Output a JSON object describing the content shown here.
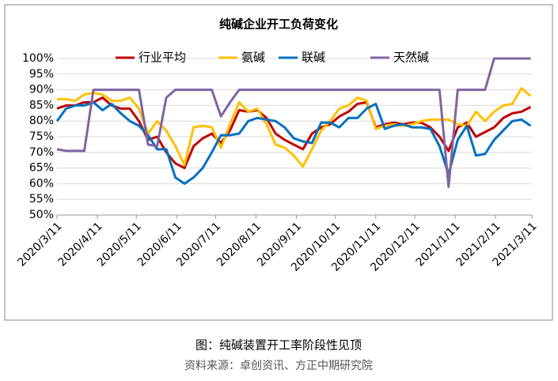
{
  "chart_data": {
    "type": "line",
    "title": "纯碱企业开工负荷变化",
    "caption": "图：纯碱装置开工率阶段性见顶",
    "source": "资料来源：卓创资讯、方正中期研究院",
    "x": [
      0,
      7,
      14,
      21,
      28,
      35,
      42,
      49,
      56,
      63,
      70,
      77,
      84,
      91,
      98,
      105,
      112,
      119,
      126,
      133,
      140,
      147,
      154,
      161,
      168,
      175,
      182,
      189,
      196,
      203,
      210,
      217,
      224,
      231,
      238,
      245,
      252,
      259,
      266,
      273,
      280,
      287,
      294,
      301,
      308,
      315,
      322,
      329,
      336,
      343,
      350,
      357,
      364
    ],
    "xlim": [
      0,
      365
    ],
    "xticks": [
      {
        "value": 0,
        "label": "2020/3/11"
      },
      {
        "value": 31,
        "label": "2020/4/11"
      },
      {
        "value": 61,
        "label": "2020/5/11"
      },
      {
        "value": 92,
        "label": "2020/6/11"
      },
      {
        "value": 122,
        "label": "2020/7/11"
      },
      {
        "value": 153,
        "label": "2020/8/11"
      },
      {
        "value": 184,
        "label": "2020/9/11"
      },
      {
        "value": 214,
        "label": "2020/10/11"
      },
      {
        "value": 245,
        "label": "2020/11/11"
      },
      {
        "value": 275,
        "label": "2020/12/11"
      },
      {
        "value": 306,
        "label": "2021/1/11"
      },
      {
        "value": 337,
        "label": "2021/2/11"
      },
      {
        "value": 365,
        "label": "2021/3/11"
      }
    ],
    "ylim": [
      50,
      100
    ],
    "yticks": [
      {
        "value": 50,
        "label": "50%"
      },
      {
        "value": 55,
        "label": "55%"
      },
      {
        "value": 60,
        "label": "60%"
      },
      {
        "value": 65,
        "label": "65%"
      },
      {
        "value": 70,
        "label": "70%"
      },
      {
        "value": 75,
        "label": "75%"
      },
      {
        "value": 80,
        "label": "80%"
      },
      {
        "value": 85,
        "label": "85%"
      },
      {
        "value": 90,
        "label": "90%"
      },
      {
        "value": 95,
        "label": "95%"
      },
      {
        "value": 100,
        "label": "100%"
      }
    ],
    "grid": true,
    "series": [
      {
        "name": "行业平均",
        "color": "#c00000",
        "values": [
          84,
          85,
          85,
          86,
          86,
          87.5,
          85,
          84,
          84,
          80,
          74,
          75,
          70,
          66.5,
          65,
          72,
          74.5,
          76,
          73,
          77,
          83.5,
          83,
          83.5,
          81,
          76,
          74,
          72.5,
          71,
          76,
          78,
          79,
          81.5,
          83,
          85.5,
          86,
          78,
          79,
          79.5,
          79,
          79.5,
          79.5,
          78,
          75,
          70.5,
          78,
          79.5,
          75,
          76.5,
          78,
          81,
          82.5,
          83,
          84.5
        ]
      },
      {
        "name": "氨碱",
        "color": "#ffc000",
        "values": [
          87,
          87,
          86.5,
          88.5,
          89,
          88.5,
          86.5,
          86.5,
          87.5,
          84,
          76,
          80,
          77,
          72,
          66,
          78,
          78.5,
          78,
          71.5,
          79,
          86,
          83,
          84,
          79,
          72.5,
          71.5,
          69,
          65.5,
          71,
          77,
          80,
          84,
          85,
          87.5,
          86.5,
          77.5,
          78.5,
          79,
          78.5,
          79,
          80,
          80.5,
          80.5,
          80.5,
          79,
          78.5,
          83,
          80,
          83,
          85,
          85.5,
          90.5,
          88
        ]
      },
      {
        "name": "联碱",
        "color": "#0070c0",
        "values": [
          80,
          84,
          85,
          85,
          86,
          83.5,
          85.5,
          82.5,
          80,
          78.5,
          75.5,
          71,
          71,
          62,
          60,
          62,
          65,
          70,
          75.5,
          75.5,
          76,
          80,
          81,
          80.5,
          80,
          78,
          74.5,
          73.5,
          73,
          79.5,
          79.5,
          78,
          81,
          81,
          84,
          85.5,
          77.5,
          78.5,
          79,
          78,
          78,
          77.5,
          72,
          63,
          74,
          78.5,
          69,
          69.5,
          74,
          77,
          80,
          80.5,
          78.5
        ]
      },
      {
        "name": "天然碱",
        "color": "#8064a2",
        "values": [
          71,
          70.5,
          70.5,
          70.5,
          90,
          90,
          90,
          90,
          90,
          90,
          72.5,
          72,
          87.5,
          90,
          90,
          90,
          90,
          90,
          81.5,
          86,
          90,
          90,
          90,
          90,
          90,
          90,
          90,
          90,
          90,
          90,
          90,
          90,
          90,
          90,
          90,
          90,
          90,
          90,
          90,
          90,
          90,
          90,
          90,
          59,
          90,
          90,
          90,
          90,
          100,
          100,
          100,
          100,
          100
        ]
      }
    ]
  }
}
